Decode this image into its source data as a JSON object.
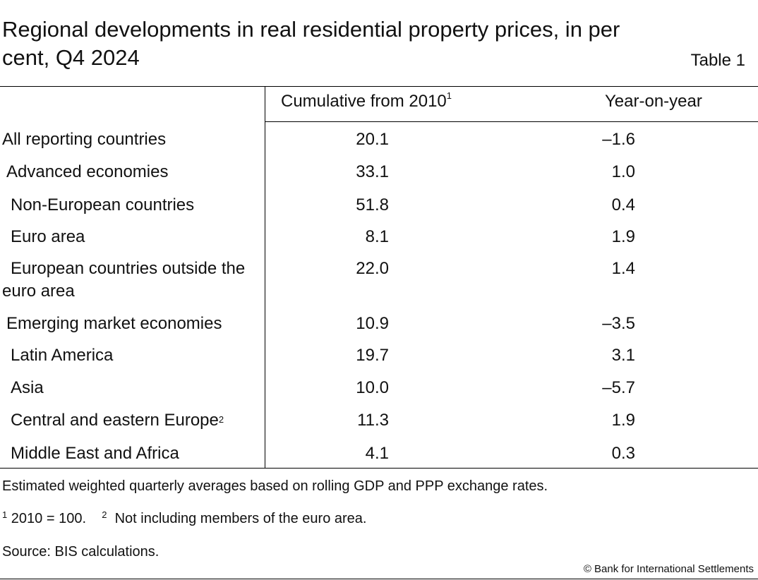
{
  "title": "Regional developments in real residential property prices, in per cent, Q4 2024",
  "table_label": "Table 1",
  "columns": {
    "cumulative": "Cumulative from 2010",
    "cumulative_sup": "1",
    "yoy": "Year-on-year"
  },
  "rows": [
    {
      "label": "All reporting countries",
      "cumulative": "20.1",
      "yoy": "–1.6"
    },
    {
      "label": "Advanced economies",
      "cumulative": "33.1",
      "yoy": "1.0"
    },
    {
      "label": "Non-European countries",
      "cumulative": "51.8",
      "yoy": "0.4"
    },
    {
      "label": "Euro area",
      "cumulative": "8.1",
      "yoy": "1.9"
    },
    {
      "label_line1": "European countries outside the",
      "label_line2": "euro area",
      "cumulative": "22.0",
      "yoy": "1.4"
    },
    {
      "label": "Emerging market economies",
      "cumulative": "10.9",
      "yoy": "–3.5"
    },
    {
      "label": "Latin America",
      "cumulative": "19.7",
      "yoy": "3.1"
    },
    {
      "label": "Asia",
      "cumulative": "10.0",
      "yoy": "–5.7"
    },
    {
      "label": "Central and eastern Europe",
      "label_sup": "2",
      "cumulative": "11.3",
      "yoy": "1.9"
    },
    {
      "label": "Middle East and Africa",
      "cumulative": "4.1",
      "yoy": "0.3"
    }
  ],
  "notes": {
    "estimate": "Estimated weighted quarterly averages based on rolling GDP and PPP exchange rates.",
    "fn1_mark": "1",
    "fn1_text": "2010 = 100.",
    "fn2_mark": "2",
    "fn2_text": "Not including members of the euro area.",
    "source": "Source: BIS calculations."
  },
  "copyright": "© Bank for International Settlements"
}
